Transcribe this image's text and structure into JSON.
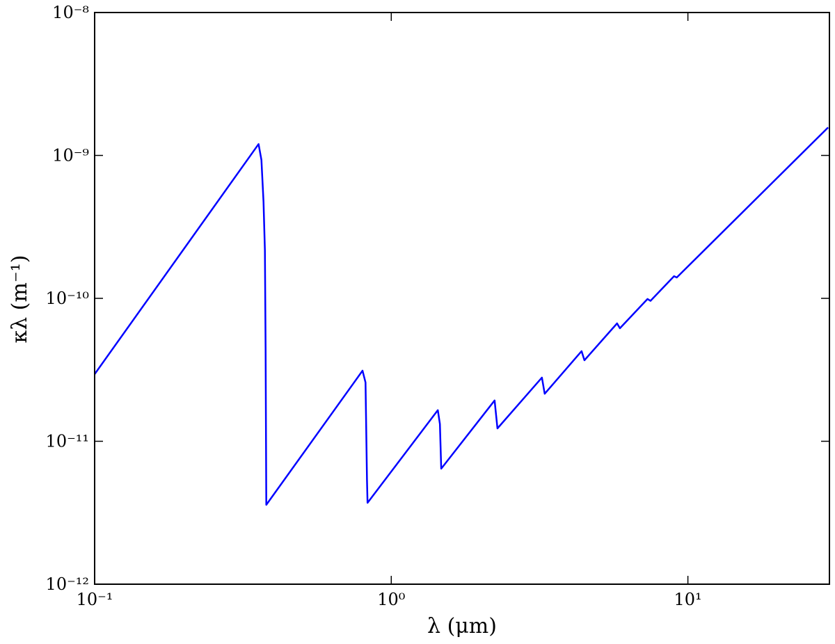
{
  "chart_data": {
    "type": "line",
    "xlabel": "λ (μm)",
    "ylabel": "κλ (m⁻¹)",
    "xscale": "log",
    "yscale": "log",
    "xlim": [
      0.1,
      30
    ],
    "ylim": [
      1e-12,
      1e-08
    ],
    "xticks": [
      {
        "value": 0.1,
        "label": "10⁻¹"
      },
      {
        "value": 1,
        "label": "10⁰"
      },
      {
        "value": 10,
        "label": "10¹"
      }
    ],
    "yticks": [
      {
        "value": 1e-12,
        "label": "10⁻¹²"
      },
      {
        "value": 1e-11,
        "label": "10⁻¹¹"
      },
      {
        "value": 1e-10,
        "label": "10⁻¹⁰"
      },
      {
        "value": 1e-09,
        "label": "10⁻⁹"
      },
      {
        "value": 1e-08,
        "label": "10⁻⁸"
      }
    ],
    "series": [
      {
        "color": "#0000ff",
        "x": [
          0.1,
          0.357,
          0.365,
          0.371,
          0.375,
          0.377,
          0.379,
          0.8,
          0.819,
          0.828,
          0.832,
          1.435,
          1.459,
          1.474,
          2.23,
          2.28,
          3.22,
          3.29,
          4.38,
          4.48,
          5.77,
          5.9,
          7.31,
          7.48,
          8.98,
          9.17,
          29.7
        ],
        "values": [
          2.95e-11,
          1.2e-09,
          9.3e-10,
          4.75e-10,
          2.17e-10,
          4.5e-11,
          3.59e-12,
          3.12e-11,
          2.58e-11,
          5.37e-12,
          3.71e-12,
          1.65e-11,
          1.32e-11,
          6.43e-12,
          1.93e-11,
          1.23e-11,
          2.79e-11,
          2.15e-11,
          4.27e-11,
          3.69e-11,
          6.68e-11,
          6.18e-11,
          9.9e-11,
          9.6e-11,
          1.43e-10,
          1.4e-10,
          1.57e-09
        ]
      }
    ]
  }
}
